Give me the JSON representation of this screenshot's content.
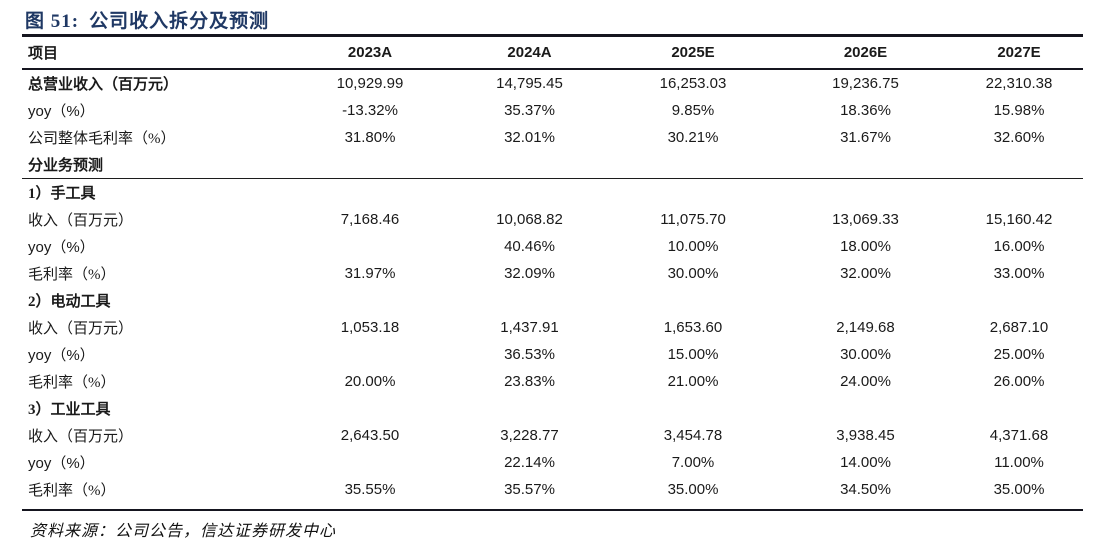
{
  "figure": {
    "label": "图 51:",
    "title": "公司收入拆分及预测"
  },
  "colors": {
    "title_navy": "#1f3864",
    "rule_dark": "#15151f",
    "body_text": "#1a1a1a"
  },
  "table": {
    "columns": [
      "项目",
      "2023A",
      "2024A",
      "2025E",
      "2026E",
      "2027E"
    ],
    "rows": [
      {
        "label": "总营业收入（百万元）",
        "bold": true,
        "type": "data",
        "values": [
          "10,929.99",
          "14,795.45",
          "16,253.03",
          "19,236.75",
          "22,310.38"
        ]
      },
      {
        "label": "yoy（%）",
        "bold": false,
        "type": "data",
        "values": [
          "-13.32%",
          "35.37%",
          "9.85%",
          "18.36%",
          "15.98%"
        ]
      },
      {
        "label": "公司整体毛利率（%）",
        "bold": false,
        "type": "data",
        "values": [
          "31.80%",
          "32.01%",
          "30.21%",
          "31.67%",
          "32.60%"
        ]
      },
      {
        "label": "分业务预测",
        "bold": true,
        "type": "divider",
        "values": [
          "",
          "",
          "",
          "",
          ""
        ]
      },
      {
        "label": "1）手工具",
        "bold": true,
        "type": "section",
        "values": [
          "",
          "",
          "",
          "",
          ""
        ]
      },
      {
        "label": "收入（百万元）",
        "bold": false,
        "type": "data",
        "values": [
          "7,168.46",
          "10,068.82",
          "11,075.70",
          "13,069.33",
          "15,160.42"
        ]
      },
      {
        "label": "yoy（%）",
        "bold": false,
        "type": "data",
        "values": [
          "",
          "40.46%",
          "10.00%",
          "18.00%",
          "16.00%"
        ]
      },
      {
        "label": "毛利率（%）",
        "bold": false,
        "type": "data",
        "values": [
          "31.97%",
          "32.09%",
          "30.00%",
          "32.00%",
          "33.00%"
        ]
      },
      {
        "label": "2）电动工具",
        "bold": true,
        "type": "section",
        "values": [
          "",
          "",
          "",
          "",
          ""
        ]
      },
      {
        "label": "收入（百万元）",
        "bold": false,
        "type": "data",
        "values": [
          "1,053.18",
          "1,437.91",
          "1,653.60",
          "2,149.68",
          "2,687.10"
        ]
      },
      {
        "label": "yoy（%）",
        "bold": false,
        "type": "data",
        "values": [
          "",
          "36.53%",
          "15.00%",
          "30.00%",
          "25.00%"
        ]
      },
      {
        "label": "毛利率（%）",
        "bold": false,
        "type": "data",
        "values": [
          "20.00%",
          "23.83%",
          "21.00%",
          "24.00%",
          "26.00%"
        ]
      },
      {
        "label": "3）工业工具",
        "bold": true,
        "type": "section",
        "values": [
          "",
          "",
          "",
          "",
          ""
        ]
      },
      {
        "label": "收入（百万元）",
        "bold": false,
        "type": "data",
        "values": [
          "2,643.50",
          "3,228.77",
          "3,454.78",
          "3,938.45",
          "4,371.68"
        ]
      },
      {
        "label": "yoy（%）",
        "bold": false,
        "type": "data",
        "values": [
          "",
          "22.14%",
          "7.00%",
          "14.00%",
          "11.00%"
        ]
      },
      {
        "label": "毛利率（%）",
        "bold": false,
        "type": "data",
        "values": [
          "35.55%",
          "35.57%",
          "35.00%",
          "34.50%",
          "35.00%"
        ]
      }
    ]
  },
  "footer": {
    "source": "资料来源：公司公告，信达证券研发中心"
  }
}
